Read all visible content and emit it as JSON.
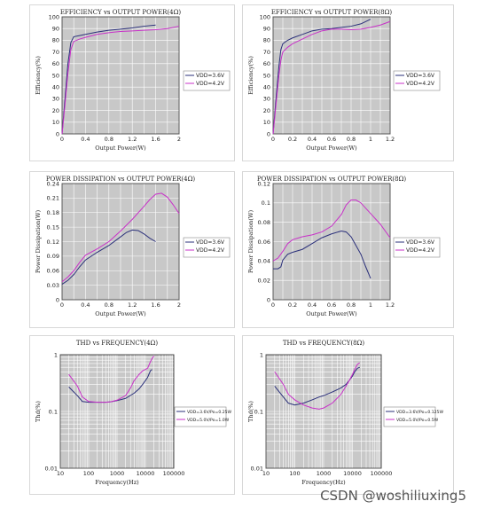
{
  "colors": {
    "series_a": "#2a2f7a",
    "series_b": "#c830c8",
    "plot_bg": "#c8c8c8",
    "grid": "#ffffff"
  },
  "watermark": "CSDN @woshiliuxing5",
  "chart_data": [
    {
      "type": "line",
      "title": "EFFICIENCY vs OUTPUT POWER(4Ω)",
      "xlabel": "Output Power(W)",
      "ylabel": "Efficiency(%)",
      "xlim": [
        0,
        2
      ],
      "ylim": [
        0,
        100
      ],
      "xticks": [
        0,
        0.4,
        0.8,
        1.2,
        1.6,
        2
      ],
      "yticks": [
        0,
        10,
        20,
        30,
        40,
        50,
        60,
        70,
        80,
        90,
        100
      ],
      "grid": true,
      "legend_position": "right",
      "series": [
        {
          "name": "VDD=3.6V",
          "color": "#2a2f7a",
          "x": [
            0,
            0.05,
            0.1,
            0.15,
            0.2,
            0.3,
            0.4,
            0.6,
            0.8,
            1.0,
            1.2,
            1.4,
            1.6
          ],
          "y": [
            0,
            30,
            60,
            78,
            83,
            84,
            85,
            87,
            88.5,
            89.5,
            90.5,
            92,
            93
          ]
        },
        {
          "name": "VDD=4.2V",
          "color": "#c830c8",
          "x": [
            0,
            0.05,
            0.1,
            0.15,
            0.2,
            0.3,
            0.4,
            0.6,
            0.8,
            1.0,
            1.2,
            1.4,
            1.6,
            1.8,
            2.0
          ],
          "y": [
            0,
            25,
            52,
            72,
            79,
            81,
            82.5,
            85,
            86.5,
            87.5,
            88,
            88.5,
            89,
            90,
            92
          ]
        }
      ]
    },
    {
      "type": "line",
      "title": "EFFICIENCY vs OUTPUT POWER(8Ω)",
      "xlabel": "Output Power(W)",
      "ylabel": "Efficiency(%)",
      "xlim": [
        0,
        1.2
      ],
      "ylim": [
        0,
        100
      ],
      "xticks": [
        0,
        0.2,
        0.4,
        0.6,
        0.8,
        1,
        1.2
      ],
      "yticks": [
        0,
        10,
        20,
        30,
        40,
        50,
        60,
        70,
        80,
        90,
        100
      ],
      "grid": true,
      "legend_position": "right",
      "series": [
        {
          "name": "VDD=3.6V",
          "color": "#2a2f7a",
          "x": [
            0,
            0.03,
            0.06,
            0.08,
            0.1,
            0.15,
            0.2,
            0.3,
            0.4,
            0.5,
            0.6,
            0.7,
            0.8,
            0.9,
            1.0
          ],
          "y": [
            0,
            30,
            58,
            72,
            77,
            80,
            82,
            85,
            88,
            89.5,
            90,
            91,
            92,
            94,
            98
          ]
        },
        {
          "name": "VDD=4.2V",
          "color": "#c830c8",
          "x": [
            0,
            0.03,
            0.06,
            0.08,
            0.1,
            0.15,
            0.2,
            0.3,
            0.4,
            0.5,
            0.6,
            0.7,
            0.8,
            0.9,
            1.0,
            1.1,
            1.2
          ],
          "y": [
            0,
            25,
            50,
            63,
            70,
            74,
            77,
            81,
            85,
            88,
            89.5,
            89.5,
            89,
            89.5,
            91,
            93,
            96
          ]
        }
      ]
    },
    {
      "type": "line",
      "title": "POWER DISSIPATION vs OUTPUT POWER(4Ω)",
      "xlabel": "Output Power(W)",
      "ylabel": "Power Dissipation(W)",
      "xlim": [
        0,
        2
      ],
      "ylim": [
        0,
        0.24
      ],
      "xticks": [
        0,
        0.4,
        0.8,
        1.2,
        1.6,
        2
      ],
      "yticks": [
        0,
        0.03,
        0.06,
        0.09,
        0.12,
        0.15,
        0.18,
        0.21,
        0.24
      ],
      "grid": true,
      "legend_position": "right",
      "series": [
        {
          "name": "VDD=3.6V",
          "color": "#2a2f7a",
          "x": [
            0,
            0.1,
            0.2,
            0.3,
            0.4,
            0.6,
            0.8,
            1.0,
            1.1,
            1.2,
            1.3,
            1.4,
            1.5,
            1.6
          ],
          "y": [
            0.032,
            0.04,
            0.052,
            0.068,
            0.082,
            0.098,
            0.112,
            0.13,
            0.139,
            0.144,
            0.143,
            0.136,
            0.127,
            0.12
          ]
        },
        {
          "name": "VDD=4.2V",
          "color": "#c830c8",
          "x": [
            0,
            0.1,
            0.2,
            0.3,
            0.4,
            0.6,
            0.8,
            1.0,
            1.2,
            1.4,
            1.5,
            1.6,
            1.7,
            1.8,
            1.9,
            2.0
          ],
          "y": [
            0.037,
            0.047,
            0.06,
            0.077,
            0.092,
            0.105,
            0.12,
            0.142,
            0.166,
            0.193,
            0.207,
            0.218,
            0.22,
            0.212,
            0.196,
            0.178
          ]
        }
      ]
    },
    {
      "type": "line",
      "title": "POWER DISSIPATION vs OUTPUT POWER(8Ω)",
      "xlabel": "Output Power(W)",
      "ylabel": "Power Dissipation(W)",
      "xlim": [
        0,
        1.2
      ],
      "ylim": [
        0,
        0.12
      ],
      "xticks": [
        0,
        0.2,
        0.4,
        0.6,
        0.8,
        1,
        1.2
      ],
      "yticks": [
        0,
        0.02,
        0.04,
        0.06,
        0.08,
        0.1,
        0.12
      ],
      "grid": true,
      "legend_position": "right",
      "series": [
        {
          "name": "VDD=3.6V",
          "color": "#2a2f7a",
          "x": [
            0,
            0.05,
            0.08,
            0.1,
            0.15,
            0.2,
            0.3,
            0.4,
            0.5,
            0.6,
            0.7,
            0.75,
            0.8,
            0.85,
            0.9,
            0.95,
            1.0
          ],
          "y": [
            0.032,
            0.032,
            0.034,
            0.041,
            0.047,
            0.049,
            0.052,
            0.058,
            0.064,
            0.068,
            0.071,
            0.07,
            0.065,
            0.056,
            0.047,
            0.034,
            0.022
          ]
        },
        {
          "name": "VDD=4.2V",
          "color": "#c830c8",
          "x": [
            0,
            0.05,
            0.1,
            0.15,
            0.2,
            0.3,
            0.4,
            0.5,
            0.6,
            0.7,
            0.75,
            0.8,
            0.85,
            0.9,
            1.0,
            1.1,
            1.2
          ],
          "y": [
            0.04,
            0.043,
            0.05,
            0.058,
            0.062,
            0.065,
            0.067,
            0.07,
            0.076,
            0.088,
            0.098,
            0.103,
            0.103,
            0.1,
            0.089,
            0.078,
            0.064
          ]
        }
      ]
    },
    {
      "type": "line",
      "title": "THD vs FREQUENCY(4Ω)",
      "xlabel": "Frequency(Hz)",
      "ylabel": "Thd(%)",
      "xscale": "log",
      "yscale": "log",
      "xlim": [
        10,
        100000
      ],
      "ylim": [
        0.01,
        1
      ],
      "xticks": [
        10,
        100,
        1000,
        10000,
        100000
      ],
      "xtick_labels": [
        "10",
        "100",
        "1000",
        "10000",
        "100000"
      ],
      "yticks": [
        0.01,
        0.1,
        1
      ],
      "ytick_labels": [
        "0.01",
        "0.1",
        "1"
      ],
      "grid": true,
      "legend_position": "right",
      "series": [
        {
          "name": "VDD=3.6V/Po=0.25W",
          "color": "#2a2f7a",
          "x": [
            20,
            40,
            60,
            100,
            200,
            400,
            600,
            1000,
            2000,
            4000,
            6000,
            8000,
            10000,
            12000,
            15000,
            17000
          ],
          "y": [
            0.27,
            0.19,
            0.15,
            0.145,
            0.145,
            0.145,
            0.148,
            0.155,
            0.17,
            0.21,
            0.25,
            0.3,
            0.35,
            0.4,
            0.52,
            0.55
          ]
        },
        {
          "name": "VDD=5.0V/Po=1.0W",
          "color": "#c830c8",
          "x": [
            20,
            40,
            60,
            100,
            200,
            400,
            600,
            1000,
            2000,
            3000,
            4000,
            6000,
            8000,
            10000,
            12000,
            15000,
            17000,
            20000
          ],
          "y": [
            0.45,
            0.28,
            0.18,
            0.15,
            0.145,
            0.145,
            0.148,
            0.158,
            0.19,
            0.26,
            0.35,
            0.45,
            0.52,
            0.55,
            0.58,
            0.75,
            0.85,
            0.95
          ]
        }
      ]
    },
    {
      "type": "line",
      "title": "THD vs FREQUENCY(8Ω)",
      "xlabel": "Frequency(Hz)",
      "ylabel": "Thd(%)",
      "xscale": "log",
      "yscale": "log",
      "xlim": [
        10,
        100000
      ],
      "ylim": [
        0.01,
        1
      ],
      "xticks": [
        10,
        100,
        1000,
        10000,
        100000
      ],
      "xtick_labels": [
        "10",
        "100",
        "1000",
        "10000",
        "100000"
      ],
      "yticks": [
        0.01,
        0.1,
        1
      ],
      "ytick_labels": [
        "0.01",
        "0.1",
        "1"
      ],
      "grid": true,
      "legend_position": "right",
      "series": [
        {
          "name": "VDD=3.6V/Po=0.125W",
          "color": "#2a2f7a",
          "x": [
            20,
            40,
            60,
            100,
            200,
            400,
            700,
            1000,
            2000,
            4000,
            6000,
            8000,
            10000,
            12000,
            15000,
            18000
          ],
          "y": [
            0.28,
            0.18,
            0.14,
            0.13,
            0.14,
            0.16,
            0.18,
            0.19,
            0.22,
            0.26,
            0.3,
            0.36,
            0.42,
            0.5,
            0.58,
            0.6
          ]
        },
        {
          "name": "VDD=5.0V/Po=0.5W",
          "color": "#c830c8",
          "x": [
            20,
            40,
            60,
            100,
            200,
            400,
            700,
            1000,
            2000,
            4000,
            6000,
            8000,
            10000,
            12000,
            15000,
            18000
          ],
          "y": [
            0.5,
            0.3,
            0.2,
            0.16,
            0.13,
            0.115,
            0.11,
            0.115,
            0.14,
            0.2,
            0.28,
            0.36,
            0.45,
            0.55,
            0.68,
            0.72
          ]
        }
      ]
    }
  ]
}
